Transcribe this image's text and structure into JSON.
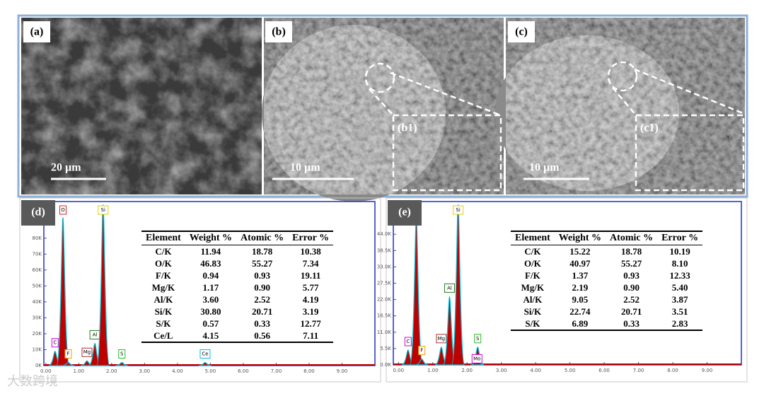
{
  "images": [
    {
      "label": "(a)",
      "scale_bar": "20 µm"
    },
    {
      "label": "(b)",
      "scale_bar": "10 µm",
      "inset": "(b1)"
    },
    {
      "label": "(c)",
      "scale_bar": "10 µm",
      "inset": "(c1)"
    }
  ],
  "spectra": [
    {
      "label": "(d)",
      "xlim": [
        -0.06,
        10
      ],
      "ylim": [
        0,
        103
      ],
      "xticks": [
        {
          "value": 0,
          "label": "0.00"
        },
        {
          "value": 1,
          "label": "1.00"
        },
        {
          "value": 2,
          "label": "2.00"
        },
        {
          "value": 3,
          "label": "3.00"
        },
        {
          "value": 4,
          "label": "4.00"
        },
        {
          "value": 5,
          "label": "5.00"
        },
        {
          "value": 6,
          "label": "6.00"
        },
        {
          "value": 7,
          "label": "7.00"
        },
        {
          "value": 8,
          "label": "8.00"
        },
        {
          "value": 9,
          "label": "9.00"
        }
      ],
      "yticks": [
        {
          "value": 0,
          "label": "0K"
        },
        {
          "value": 10,
          "label": "10K"
        },
        {
          "value": 20,
          "label": "20K"
        },
        {
          "value": 30,
          "label": "30K"
        },
        {
          "value": 40,
          "label": "40K"
        },
        {
          "value": 50,
          "label": "50K"
        },
        {
          "value": 60,
          "label": "60K"
        },
        {
          "value": 70,
          "label": "70K"
        },
        {
          "value": 80,
          "label": "80K"
        }
      ],
      "peaks": [
        {
          "label": "C",
          "energy": 0.28,
          "counts": 9,
          "color": "#d400d4"
        },
        {
          "label": "O",
          "energy": 0.52,
          "counts": 93,
          "color": "#e02020"
        },
        {
          "label": "F",
          "energy": 0.68,
          "counts": 2,
          "color": "#f0a000"
        },
        {
          "label": "Mg",
          "energy": 1.25,
          "counts": 3,
          "color": "#b03030"
        },
        {
          "label": "Al",
          "energy": 1.49,
          "counts": 14,
          "color": "#208020"
        },
        {
          "label": "Si",
          "energy": 1.74,
          "counts": 101,
          "color": "#e0d000"
        },
        {
          "label": "S",
          "energy": 2.31,
          "counts": 2,
          "color": "#20c020"
        },
        {
          "label": "Ce",
          "energy": 4.84,
          "counts": 2,
          "color": "#00c0e0"
        }
      ],
      "table": {
        "columns": [
          "Element",
          "Weight %",
          "Atomic %",
          "Error %"
        ],
        "rows": [
          [
            "C/K",
            "11.94",
            "18.78",
            "10.38"
          ],
          [
            "O/K",
            "46.83",
            "55.27",
            "7.34"
          ],
          [
            "F/K",
            "0.94",
            "0.93",
            "19.11"
          ],
          [
            "Mg/K",
            "1.17",
            "0.90",
            "5.77"
          ],
          [
            "Al/K",
            "3.60",
            "2.52",
            "4.19"
          ],
          [
            "Si/K",
            "30.80",
            "20.71",
            "3.19"
          ],
          [
            "S/K",
            "0.57",
            "0.33",
            "12.77"
          ],
          [
            "Ce/L",
            "4.15",
            "0.56",
            "7.11"
          ]
        ]
      }
    },
    {
      "label": "(e)",
      "xlim": [
        -0.15,
        10
      ],
      "ylim": [
        0,
        55
      ],
      "xticks": [
        {
          "value": 0,
          "label": "0.00"
        },
        {
          "value": 1,
          "label": "1.00"
        },
        {
          "value": 2,
          "label": "2.00"
        },
        {
          "value": 3,
          "label": "3.00"
        },
        {
          "value": 4,
          "label": "4.00"
        },
        {
          "value": 5,
          "label": "5.00"
        },
        {
          "value": 6,
          "label": "6.00"
        },
        {
          "value": 7,
          "label": "7.00"
        },
        {
          "value": 8,
          "label": "8.00"
        },
        {
          "value": 9,
          "label": "9.00"
        }
      ],
      "yticks": [
        {
          "value": 0,
          "label": "0.0K"
        },
        {
          "value": 5.5,
          "label": "5.5K"
        },
        {
          "value": 11,
          "label": "11.0K"
        },
        {
          "value": 16.5,
          "label": "16.5K"
        },
        {
          "value": 22,
          "label": "22.0K"
        },
        {
          "value": 27.5,
          "label": "27.5K"
        },
        {
          "value": 33,
          "label": "33.0K"
        },
        {
          "value": 38.5,
          "label": "38.5K"
        },
        {
          "value": 44,
          "label": "44.0K"
        }
      ],
      "peaks": [
        {
          "label": "C",
          "energy": 0.28,
          "counts": 5,
          "color": "#d400d4"
        },
        {
          "label": "O",
          "energy": 0.52,
          "counts": 50,
          "color": "#e02020"
        },
        {
          "label": "F",
          "energy": 0.68,
          "counts": 2,
          "color": "#f0a000"
        },
        {
          "label": "Mg",
          "energy": 1.25,
          "counts": 6,
          "color": "#b03030"
        },
        {
          "label": "Al",
          "energy": 1.49,
          "counts": 23,
          "color": "#208020"
        },
        {
          "label": "Si",
          "energy": 1.74,
          "counts": 54,
          "color": "#e0d000"
        },
        {
          "label": "S",
          "energy": 2.31,
          "counts": 6,
          "color": "#20c020"
        },
        {
          "label": "Mo",
          "energy": 2.29,
          "counts": 3,
          "color": "#d400d4"
        }
      ],
      "table": {
        "columns": [
          "Element",
          "Weight %",
          "Atomic %",
          "Error %"
        ],
        "rows": [
          [
            "C/K",
            "15.22",
            "18.78",
            "10.19"
          ],
          [
            "O/K",
            "40.97",
            "55.27",
            "8.10"
          ],
          [
            "F/K",
            "1.37",
            "0.93",
            "12.33"
          ],
          [
            "Mg/K",
            "2.19",
            "0.90",
            "5.40"
          ],
          [
            "Al/K",
            "9.05",
            "2.52",
            "3.87"
          ],
          [
            "Si/K",
            "22.74",
            "20.71",
            "3.51"
          ],
          [
            "S/K",
            "6.89",
            "0.33",
            "2.83"
          ]
        ]
      }
    }
  ],
  "watermark": "大数跨境"
}
